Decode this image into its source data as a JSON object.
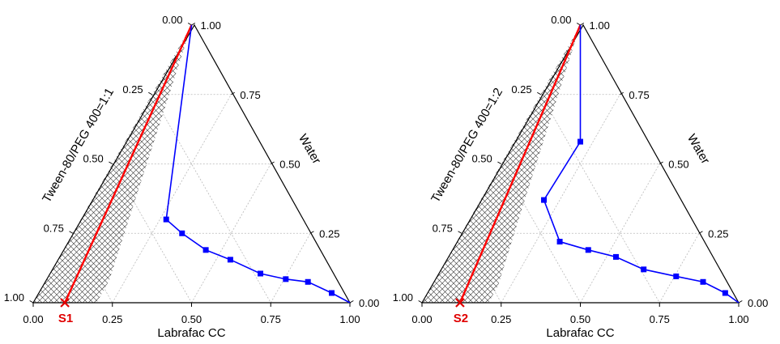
{
  "chart_data": [
    {
      "type": "ternary",
      "axes": {
        "bottom": "Labrafac CC",
        "left": "Tween-80/PEG 400=1:1",
        "right": "Water"
      },
      "ticks": [
        "0.00",
        "0.25",
        "0.50",
        "0.75",
        "1.00"
      ],
      "tick_values": [
        0,
        0.25,
        0.5,
        0.75,
        1
      ],
      "boundary": [
        {
          "oil": 0.0,
          "water": 1.0
        },
        {
          "oil": 0.27,
          "water": 0.3
        },
        {
          "oil": 0.345,
          "water": 0.25
        },
        {
          "oil": 0.45,
          "water": 0.19
        },
        {
          "oil": 0.545,
          "water": 0.155
        },
        {
          "oil": 0.665,
          "water": 0.105
        },
        {
          "oil": 0.755,
          "water": 0.085
        },
        {
          "oil": 0.83,
          "water": 0.075
        },
        {
          "oil": 0.925,
          "water": 0.035
        },
        {
          "oil": 1.0,
          "water": 0.0
        }
      ],
      "hatched_region": [
        {
          "oil": 0.0,
          "water": 1.0
        },
        {
          "oil": 0.2,
          "water": 0.08
        },
        {
          "oil": 0.2,
          "water": 0.0
        },
        {
          "oil": 0.0,
          "water": 0.0
        }
      ],
      "dilution_line": [
        {
          "oil": 0.0,
          "water": 1.0
        },
        {
          "oil": 0.1,
          "water": 0.0
        }
      ],
      "marker": {
        "label": "S1",
        "oil": 0.1,
        "water": 0.0
      },
      "colors": {
        "boundary": "#0000ff",
        "dilution": "#ff0000",
        "marker": "#e00000"
      }
    },
    {
      "type": "ternary",
      "axes": {
        "bottom": "Labrafac CC",
        "left": "Tween-80/PEG 400=1:2",
        "right": "Water"
      },
      "ticks": [
        "0.00",
        "0.25",
        "0.50",
        "0.75",
        "1.00"
      ],
      "tick_values": [
        0,
        0.25,
        0.5,
        0.75,
        1
      ],
      "boundary": [
        {
          "oil": 0.0,
          "water": 1.0
        },
        {
          "oil": 0.21,
          "water": 0.58
        },
        {
          "oil": 0.2,
          "water": 0.37
        },
        {
          "oil": 0.325,
          "water": 0.22
        },
        {
          "oil": 0.43,
          "water": 0.19
        },
        {
          "oil": 0.53,
          "water": 0.165
        },
        {
          "oil": 0.64,
          "water": 0.12
        },
        {
          "oil": 0.755,
          "water": 0.095
        },
        {
          "oil": 0.85,
          "water": 0.075
        },
        {
          "oil": 0.94,
          "water": 0.035
        },
        {
          "oil": 1.0,
          "water": 0.0
        }
      ],
      "hatched_region": [
        {
          "oil": 0.0,
          "water": 1.0
        },
        {
          "oil": 0.155,
          "water": 0.3
        },
        {
          "oil": 0.21,
          "water": 0.06
        },
        {
          "oil": 0.21,
          "water": 0.0
        },
        {
          "oil": 0.0,
          "water": 0.0
        }
      ],
      "dilution_line": [
        {
          "oil": 0.0,
          "water": 1.0
        },
        {
          "oil": 0.12,
          "water": 0.0
        }
      ],
      "marker": {
        "label": "S2",
        "oil": 0.12,
        "water": 0.0
      },
      "colors": {
        "boundary": "#0000ff",
        "dilution": "#ff0000",
        "marker": "#e00000"
      }
    }
  ]
}
